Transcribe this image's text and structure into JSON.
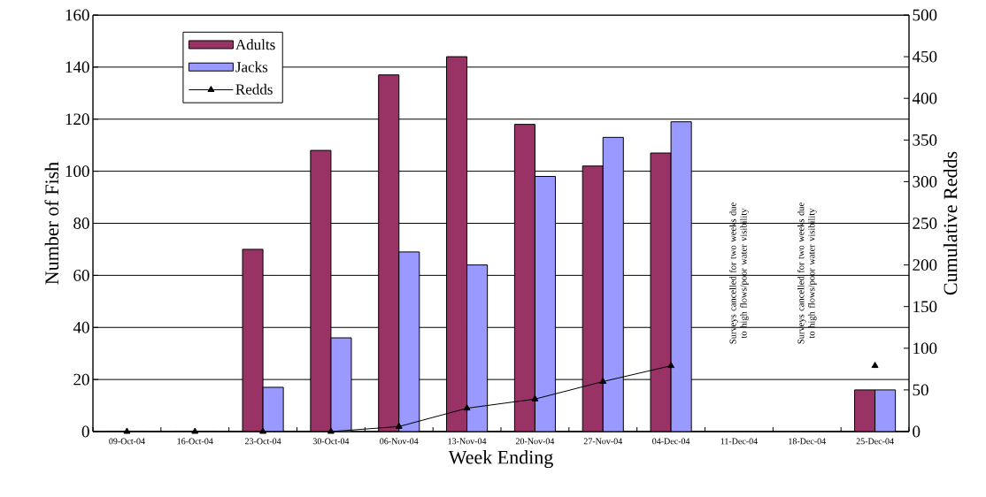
{
  "chart_data": {
    "type": "bar",
    "xlabel": "Week Ending",
    "ylabel": "Number of Fish",
    "y2label": "Cumulative Redds",
    "categories": [
      "09-Oct-04",
      "16-Oct-04",
      "23-Oct-04",
      "30-Oct-04",
      "06-Nov-04",
      "13-Nov-04",
      "20-Nov-04",
      "27-Nov-04",
      "04-Dec-04",
      "11-Dec-04",
      "18-Dec-04",
      "25-Dec-04"
    ],
    "series": [
      {
        "name": "Adults",
        "color": "#993366",
        "values": [
          0,
          0,
          70,
          108,
          137,
          144,
          118,
          102,
          107,
          null,
          null,
          16
        ]
      },
      {
        "name": "Jacks",
        "color": "#9999ff",
        "values": [
          0,
          0,
          17,
          36,
          69,
          64,
          98,
          113,
          119,
          null,
          null,
          16
        ]
      },
      {
        "name": "Redds",
        "type": "line",
        "axis": "y2",
        "color": "#000000",
        "marker": "triangle",
        "values": [
          0,
          0,
          0,
          0,
          6,
          28,
          39,
          60,
          79,
          null,
          null,
          79
        ]
      }
    ],
    "ylim": [
      0,
      160
    ],
    "yticks": [
      0,
      20,
      40,
      60,
      80,
      100,
      120,
      140,
      160
    ],
    "y2lim": [
      0,
      500
    ],
    "y2ticks": [
      0,
      50,
      100,
      150,
      200,
      250,
      300,
      350,
      400,
      450,
      500
    ],
    "grid": "y",
    "legend": "top left",
    "annotations": [
      "Surveys cancelled for two weeks due to high flows/poor water visibility",
      "Surveys cancelled for two weeks due to high flows/poor water visibility"
    ]
  }
}
